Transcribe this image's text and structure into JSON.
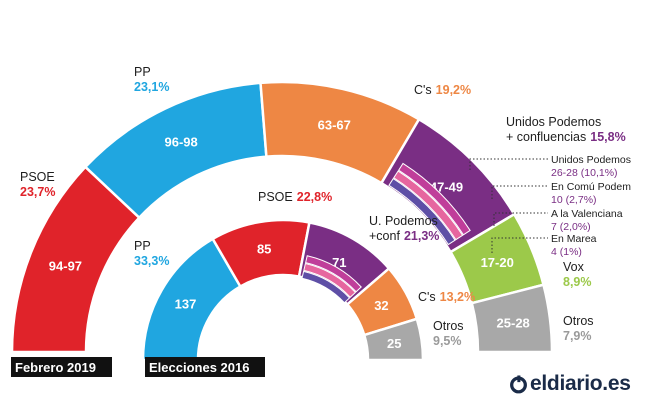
{
  "chart_data": [
    {
      "type": "hemicycle",
      "title": "Febrero 2019",
      "series": [
        {
          "name": "PSOE",
          "label": "PSOE",
          "pct": "23,7%",
          "value": 23.7,
          "seats": "94-97",
          "color": "#e0232a"
        },
        {
          "name": "PP",
          "label": "PP",
          "pct": "23,1%",
          "value": 23.1,
          "seats": "96-98",
          "color": "#20a6e0"
        },
        {
          "name": "C's",
          "label": "C's",
          "pct": "19,2%",
          "value": 19.2,
          "seats": "63-67",
          "color": "#ee8744"
        },
        {
          "name": "Unidos Podemos + confluencias",
          "label_lines": [
            "Unidos Podemos",
            "+ confluencias"
          ],
          "pct": "15,8%",
          "value": 15.8,
          "seats": "47-49",
          "color": "#7a2e84",
          "breakdown": [
            {
              "name": "Unidos Podemos",
              "detail": "26-28 (10,1%)",
              "color": "#7a2e84"
            },
            {
              "name": "En Comú Podem",
              "detail": "10 (2,7%)",
              "color": "#c03e9a"
            },
            {
              "name": "A la Valenciana",
              "detail": "7 (2,0%)",
              "color": "#e6669f"
            },
            {
              "name": "En Marea",
              "detail": "4 (1%)",
              "color": "#5e4fa6"
            }
          ]
        },
        {
          "name": "Vox",
          "label": "Vox",
          "pct": "8,9%",
          "value": 8.9,
          "seats": "17-20",
          "color": "#9cc94a"
        },
        {
          "name": "Otros",
          "label": "Otros",
          "pct": "7,9%",
          "value": 7.9,
          "seats": "25-28",
          "color": "#a8a8a8"
        }
      ]
    },
    {
      "type": "hemicycle",
      "title": "Elecciones 2016",
      "series": [
        {
          "name": "PP",
          "label": "PP",
          "pct": "33,3%",
          "value": 33.3,
          "seats": "137",
          "color": "#20a6e0"
        },
        {
          "name": "PSOE",
          "label": "PSOE",
          "pct": "22,8%",
          "value": 22.8,
          "seats": "85",
          "color": "#e0232a"
        },
        {
          "name": "U. Podemos +conf",
          "label_lines": [
            "U. Podemos",
            "+conf"
          ],
          "pct": "21,3%",
          "value": 21.3,
          "seats": "71",
          "color": "#7a2e84"
        },
        {
          "name": "C's",
          "label": "C's",
          "pct": "13,2%",
          "value": 13.2,
          "seats": "32",
          "color": "#ee8744"
        },
        {
          "name": "Otros",
          "label": "Otros",
          "pct": "9,5%",
          "value": 9.5,
          "seats": "25",
          "color": "#a8a8a8"
        }
      ]
    }
  ],
  "brand": {
    "name": "eldiario.es",
    "color": "#1a2b48"
  },
  "colors": {
    "pct_gray": "#9a9a9a",
    "pct_cs": "#ee8744",
    "pct_up": "#7a2e84",
    "pct_vox": "#9cc94a",
    "badge_bg": "#111111"
  }
}
